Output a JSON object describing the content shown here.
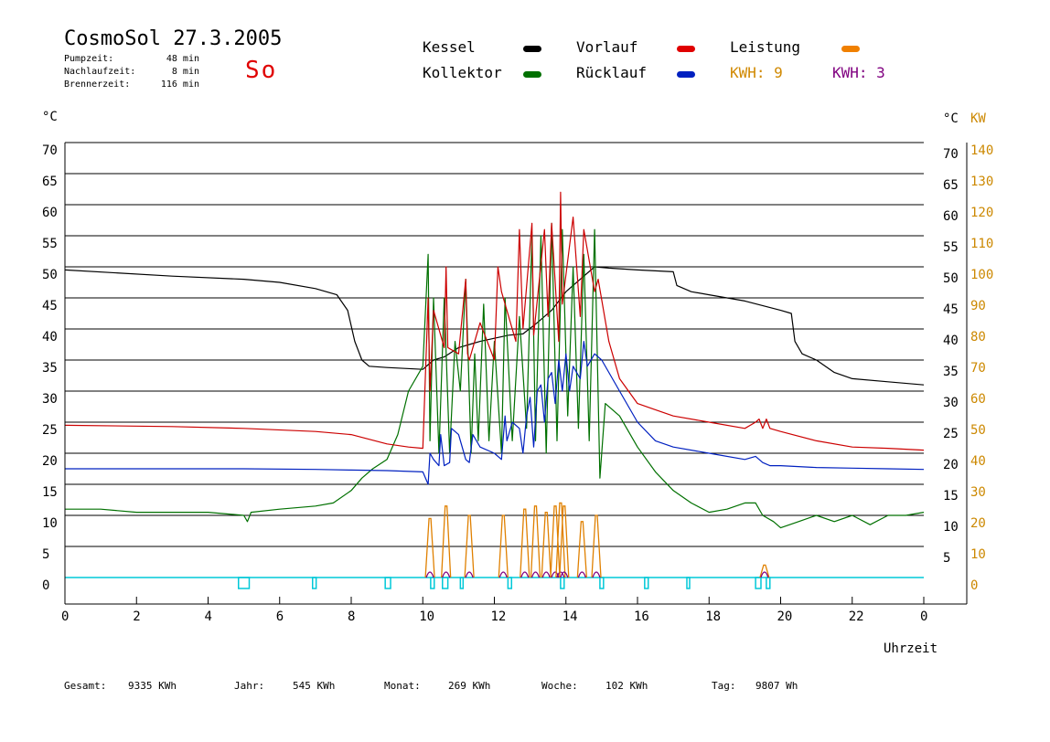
{
  "header": {
    "title": "CosmoSol 27.3.2005",
    "day": "So",
    "stats": [
      {
        "label": "Pumpzeit:",
        "value": "48 min"
      },
      {
        "label": "Nachlaufzeit:",
        "value": "8 min"
      },
      {
        "label": "Brennerzeit:",
        "value": "116 min"
      }
    ]
  },
  "legend": {
    "kessel": "Kessel",
    "kollektor": "Kollektor",
    "vorlauf": "Vorlauf",
    "ruecklauf": "Rücklauf",
    "leistung": "Leistung",
    "kwh_orange": "KWH: 9",
    "kwh_purple": "KWH: 3"
  },
  "colors": {
    "kessel": "#000000",
    "kollektor": "#007000",
    "vorlauf": "#cc0000",
    "ruecklauf": "#0020c0",
    "leistung": "#e08000",
    "kwh_purple": "#800080",
    "pump": "#00c8d8",
    "grid": "#000000",
    "axis_right2": "#cc8800"
  },
  "footer": {
    "items": [
      {
        "label": "Gesamt:",
        "value": "9335 KWh"
      },
      {
        "label": "Jahr:",
        "value": "545 KWh"
      },
      {
        "label": "Monat:",
        "value": "269 KWh"
      },
      {
        "label": "Woche:",
        "value": "102 KWh"
      },
      {
        "label": "Tag:",
        "value": "9807 Wh"
      }
    ]
  },
  "chart_data": {
    "type": "line",
    "title": "",
    "xlabel": "Uhrzeit",
    "y_unit_left": "°C",
    "y_unit_right": "°C",
    "y2_unit_right": "KW",
    "xlim": [
      0,
      24
    ],
    "ylim": [
      0,
      70
    ],
    "x_ticks": [
      "0",
      "2",
      "4",
      "6",
      "8",
      "10",
      "12",
      "14",
      "16",
      "18",
      "20",
      "22",
      "0"
    ],
    "y_ticks": [
      0,
      5,
      10,
      15,
      20,
      25,
      30,
      35,
      40,
      45,
      50,
      55,
      60,
      65,
      70
    ],
    "y2_ticks": [
      0,
      10,
      20,
      30,
      40,
      50,
      60,
      70,
      80,
      90,
      100,
      110,
      120,
      130,
      140
    ],
    "series": [
      {
        "name": "Kessel",
        "key": "kessel",
        "x": [
          0,
          3,
          5,
          6,
          7,
          7.6,
          7.9,
          8.1,
          8.3,
          8.5,
          9,
          10,
          10.3,
          10.6,
          11,
          11.3,
          11.6,
          12,
          12.4,
          12.8,
          13.2,
          13.6,
          14,
          14.4,
          14.8,
          15.2,
          16,
          17,
          17.1,
          17.5,
          18,
          19,
          20,
          20.3,
          20.4,
          20.6,
          21,
          21.5,
          22,
          23,
          24
        ],
        "y": [
          49.5,
          48.5,
          48,
          47.5,
          46.5,
          45.5,
          43,
          38,
          35,
          34,
          33.8,
          33.5,
          35,
          35.5,
          37,
          37.5,
          38,
          38.5,
          39,
          39.2,
          41,
          43,
          46,
          48,
          50,
          49.8,
          49.5,
          49.2,
          47,
          46,
          45.5,
          44.5,
          43,
          42.5,
          38,
          36,
          35,
          33,
          32,
          31.5,
          31
        ]
      },
      {
        "name": "Kollektor",
        "key": "kollektor",
        "x": [
          0,
          1,
          2,
          3,
          4,
          5,
          5.1,
          5.2,
          6,
          7,
          7.5,
          8,
          8.3,
          8.6,
          9,
          9.3,
          9.6,
          10,
          10.15,
          10.2,
          10.3,
          10.45,
          10.6,
          10.75,
          10.9,
          11.05,
          11.2,
          11.35,
          11.45,
          11.55,
          11.7,
          11.85,
          12,
          12.2,
          12.3,
          12.5,
          12.7,
          12.9,
          13.05,
          13.15,
          13.3,
          13.45,
          13.6,
          13.75,
          13.9,
          14.05,
          14.2,
          14.35,
          14.5,
          14.65,
          14.8,
          14.95,
          15.1,
          15.5,
          16,
          16.5,
          17,
          17.5,
          18,
          18.5,
          19,
          19.3,
          19.5,
          19.8,
          20,
          20.5,
          21,
          21.5,
          22,
          22.5,
          23,
          23.5,
          24
        ],
        "y": [
          11,
          11,
          10.5,
          10.5,
          10.5,
          10,
          9,
          10.5,
          11,
          11.5,
          12,
          14,
          16,
          17.5,
          19,
          23,
          30,
          34,
          52,
          22,
          45,
          20,
          45,
          20,
          38,
          30,
          48,
          20,
          36,
          22,
          44,
          22,
          38,
          20,
          45,
          22,
          42,
          24,
          55,
          22,
          55,
          20,
          57,
          22,
          56,
          26,
          50,
          24,
          52,
          22,
          56,
          16,
          28,
          26,
          21,
          17,
          14,
          12,
          10.5,
          11,
          12,
          12,
          10,
          9,
          8,
          9,
          10,
          9,
          10,
          8.5,
          10,
          10,
          10.5
        ]
      },
      {
        "name": "Vorlauf",
        "key": "vorlauf",
        "x": [
          0,
          3,
          5,
          7,
          8,
          9,
          9.6,
          10,
          10.15,
          10.2,
          10.3,
          10.6,
          10.65,
          10.7,
          11,
          11.2,
          11.25,
          11.3,
          11.6,
          12,
          12.1,
          12.2,
          12.6,
          12.7,
          12.8,
          13.05,
          13.1,
          13.4,
          13.5,
          13.6,
          13.8,
          13.85,
          13.9,
          14.2,
          14.4,
          14.5,
          14.8,
          14.9,
          15.2,
          15.5,
          16,
          16.5,
          17,
          18,
          19,
          19.3,
          19.4,
          19.5,
          19.6,
          19.7,
          20,
          21,
          22,
          23,
          24
        ],
        "y": [
          24.5,
          24.3,
          24,
          23.5,
          23,
          21.5,
          21,
          20.8,
          45,
          30,
          43,
          37,
          50,
          37,
          36,
          48,
          36,
          35,
          41,
          35,
          50,
          46,
          38,
          56,
          40,
          57,
          39,
          56,
          42,
          57,
          38,
          62,
          44,
          58,
          42,
          56,
          46,
          48,
          38,
          32,
          28,
          27,
          26,
          25,
          24,
          25,
          25.5,
          24,
          25.5,
          24,
          23.5,
          22,
          21,
          20.8,
          20.5
        ]
      },
      {
        "name": "Rücklauf",
        "key": "ruecklauf",
        "x": [
          0,
          3,
          5,
          7,
          8,
          9,
          10,
          10.15,
          10.2,
          10.3,
          10.45,
          10.5,
          10.6,
          10.75,
          10.8,
          11,
          11.2,
          11.3,
          11.4,
          11.6,
          12,
          12.2,
          12.3,
          12.35,
          12.5,
          12.7,
          12.8,
          12.9,
          13,
          13.1,
          13.2,
          13.3,
          13.4,
          13.5,
          13.6,
          13.7,
          13.8,
          13.9,
          14,
          14.1,
          14.2,
          14.4,
          14.5,
          14.6,
          14.8,
          15,
          15.5,
          16,
          16.5,
          17,
          18,
          19,
          19.3,
          19.5,
          19.7,
          20,
          21,
          22,
          23,
          24
        ],
        "y": [
          17.5,
          17.5,
          17.5,
          17.4,
          17.3,
          17.2,
          17.0,
          15,
          20,
          19,
          18,
          23,
          18,
          18.5,
          24,
          23,
          19,
          18.5,
          23,
          21,
          20,
          19,
          26,
          22,
          25,
          24,
          20,
          26,
          29,
          21,
          30,
          31,
          25,
          32,
          33,
          28,
          35,
          30,
          36,
          30,
          34,
          32,
          38,
          34,
          36,
          35,
          30,
          25,
          22,
          21,
          20,
          19,
          19.5,
          18.5,
          18,
          18,
          17.7,
          17.6,
          17.5,
          17.4
        ]
      }
    ],
    "power_series": {
      "name": "Leistung",
      "key": "leistung",
      "axis": "y2",
      "pulses": [
        {
          "x": 10.2,
          "y": 19
        },
        {
          "x": 10.65,
          "y": 23
        },
        {
          "x": 11.3,
          "y": 20
        },
        {
          "x": 12.25,
          "y": 20
        },
        {
          "x": 12.85,
          "y": 22
        },
        {
          "x": 13.15,
          "y": 23
        },
        {
          "x": 13.45,
          "y": 21
        },
        {
          "x": 13.7,
          "y": 23
        },
        {
          "x": 13.85,
          "y": 24
        },
        {
          "x": 13.95,
          "y": 23
        },
        {
          "x": 14.45,
          "y": 18
        },
        {
          "x": 14.85,
          "y": 20
        },
        {
          "x": 19.55,
          "y": 4
        }
      ]
    },
    "pump_intervals": [
      [
        4.85,
        5.15
      ],
      [
        6.92,
        7.02
      ],
      [
        8.95,
        9.1
      ],
      [
        10.22,
        10.32
      ],
      [
        10.55,
        10.7
      ],
      [
        11.05,
        11.12
      ],
      [
        12.38,
        12.48
      ],
      [
        13.85,
        13.95
      ],
      [
        14.95,
        15.05
      ],
      [
        16.2,
        16.3
      ],
      [
        17.38,
        17.45
      ],
      [
        19.3,
        19.45
      ],
      [
        19.6,
        19.7
      ]
    ]
  }
}
